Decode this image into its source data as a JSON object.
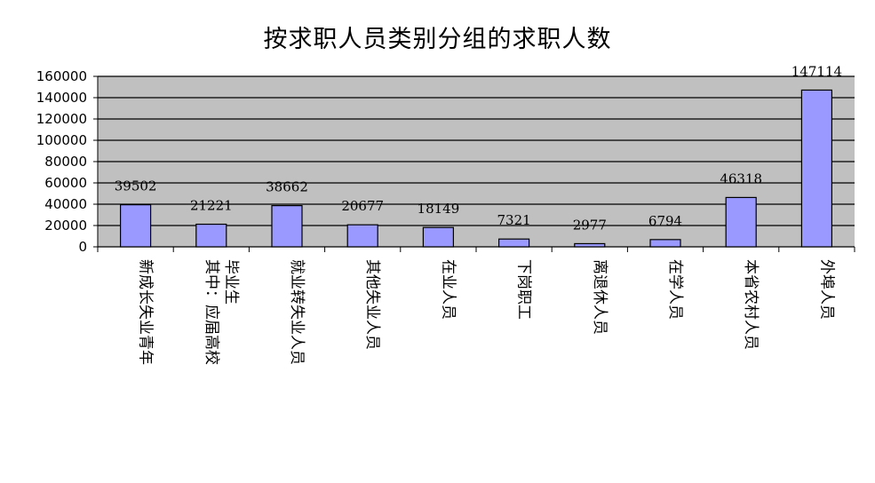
{
  "chart_data": {
    "type": "bar",
    "title": "按求职人员类别分组的求职人数",
    "categories": [
      [
        "新成长失业青年"
      ],
      [
        "其中：应届高校",
        "毕业生"
      ],
      [
        "就业转失业人员"
      ],
      [
        "其他失业人员"
      ],
      [
        "在业人员"
      ],
      [
        "下岗职工"
      ],
      [
        "离退休人员"
      ],
      [
        "在学人员"
      ],
      [
        "本省农村人员"
      ],
      [
        "外埠人员"
      ]
    ],
    "values": [
      39502,
      21221,
      38662,
      20677,
      18149,
      7321,
      2977,
      6794,
      46318,
      147114
    ],
    "data_labels": [
      "39502",
      "21221",
      "38662",
      "20677",
      "18149",
      "7321",
      "2977",
      "6794",
      "46318",
      "147114"
    ],
    "ylim": [
      0,
      160000
    ],
    "yticks": [
      "0",
      "20000",
      "40000",
      "60000",
      "80000",
      "100000",
      "120000",
      "140000",
      "160000"
    ],
    "grid": true,
    "legend": "none",
    "colors": {
      "bar": "#9999ff",
      "plot_bg": "#c0c0c0",
      "grid": "#000000"
    }
  }
}
